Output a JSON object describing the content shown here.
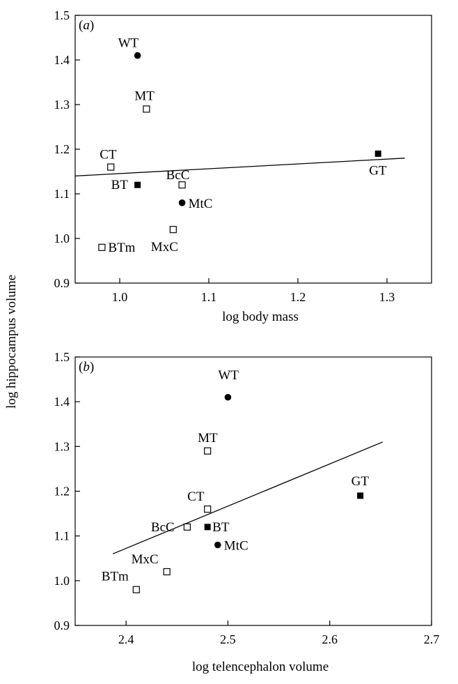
{
  "figure": {
    "shared_ylabel": "log hippocampus volume"
  },
  "chart_data": [
    {
      "panel_label": "(a)",
      "type": "scatter",
      "xlabel": "log body mass",
      "ylabel": "log hippocampus volume",
      "xlim": [
        0.95,
        1.35
      ],
      "ylim": [
        0.9,
        1.5
      ],
      "xticks": [
        "1.0",
        "1.1",
        "1.2",
        "1.3"
      ],
      "xtick_values": [
        1.0,
        1.1,
        1.2,
        1.3
      ],
      "yticks": [
        "0.9",
        "1.0",
        "1.1",
        "1.2",
        "1.3",
        "1.4",
        "1.5"
      ],
      "ytick_values": [
        0.9,
        1.0,
        1.1,
        1.2,
        1.3,
        1.4,
        1.5
      ],
      "grid": false,
      "points": [
        {
          "label": "WT",
          "x": 1.02,
          "y": 1.41,
          "marker": "filled-circle"
        },
        {
          "label": "MT",
          "x": 1.03,
          "y": 1.29,
          "marker": "open-square"
        },
        {
          "label": "CT",
          "x": 0.99,
          "y": 1.16,
          "marker": "open-square"
        },
        {
          "label": "BT",
          "x": 1.02,
          "y": 1.12,
          "marker": "filled-square"
        },
        {
          "label": "BcC",
          "x": 1.07,
          "y": 1.12,
          "marker": "open-square"
        },
        {
          "label": "MtC",
          "x": 1.07,
          "y": 1.08,
          "marker": "filled-circle"
        },
        {
          "label": "MxC",
          "x": 1.06,
          "y": 1.02,
          "marker": "open-square"
        },
        {
          "label": "BTm",
          "x": 0.98,
          "y": 0.98,
          "marker": "open-square"
        },
        {
          "label": "GT",
          "x": 1.29,
          "y": 1.19,
          "marker": "filled-square"
        }
      ],
      "regression_line": {
        "x1": 0.95,
        "y1": 1.14,
        "x2": 1.32,
        "y2": 1.18
      }
    },
    {
      "panel_label": "(b)",
      "type": "scatter",
      "xlabel": "log telencephalon volume",
      "ylabel": "log hippocampus volume",
      "xlim": [
        2.35,
        2.7
      ],
      "ylim": [
        0.9,
        1.5
      ],
      "xticks": [
        "2.4",
        "2.5",
        "2.6",
        "2.7"
      ],
      "xtick_values": [
        2.4,
        2.5,
        2.6,
        2.7
      ],
      "yticks": [
        "0.9",
        "1.0",
        "1.1",
        "1.2",
        "1.3",
        "1.4",
        "1.5"
      ],
      "ytick_values": [
        0.9,
        1.0,
        1.1,
        1.2,
        1.3,
        1.4,
        1.5
      ],
      "grid": false,
      "points": [
        {
          "label": "WT",
          "x": 2.5,
          "y": 1.41,
          "marker": "filled-circle"
        },
        {
          "label": "MT",
          "x": 2.48,
          "y": 1.29,
          "marker": "open-square"
        },
        {
          "label": "CT",
          "x": 2.48,
          "y": 1.16,
          "marker": "open-square"
        },
        {
          "label": "BT",
          "x": 2.48,
          "y": 1.12,
          "marker": "filled-square"
        },
        {
          "label": "BcC",
          "x": 2.46,
          "y": 1.12,
          "marker": "open-square"
        },
        {
          "label": "MtC",
          "x": 2.49,
          "y": 1.08,
          "marker": "filled-circle"
        },
        {
          "label": "MxC",
          "x": 2.44,
          "y": 1.02,
          "marker": "open-square"
        },
        {
          "label": "BTm",
          "x": 2.41,
          "y": 0.98,
          "marker": "open-square"
        },
        {
          "label": "GT",
          "x": 2.63,
          "y": 1.19,
          "marker": "filled-square"
        }
      ],
      "regression_line": {
        "x1": 2.387,
        "y1": 1.06,
        "x2": 2.652,
        "y2": 1.31
      }
    }
  ]
}
